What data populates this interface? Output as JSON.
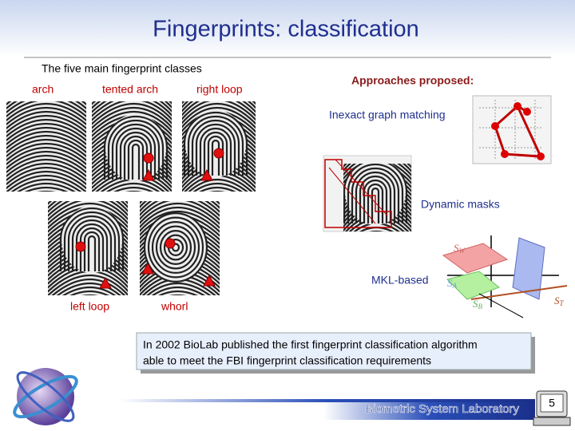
{
  "header": {
    "title": "Fingerprints: classification"
  },
  "classes": {
    "caption": "The five main fingerprint classes",
    "labels": [
      "arch",
      "tented arch",
      "right loop",
      "left loop",
      "whorl"
    ]
  },
  "approaches": {
    "heading": "Approaches proposed:",
    "items": [
      "Inexact graph matching",
      "Dynamic masks",
      "MKL-based"
    ],
    "mkl_labels": [
      {
        "base": "S",
        "sub": "W"
      },
      {
        "base": "S",
        "sub": "A"
      },
      {
        "base": "S",
        "sub": "B"
      },
      {
        "base": "S",
        "sub": "T"
      }
    ]
  },
  "callout": {
    "lines": [
      "In 2002 BioLab published the first fingerprint classification algorithm",
      "able to meet the FBI fingerprint classification requirements"
    ]
  },
  "footer": {
    "lab": "Biometric System Laboratory",
    "page": "5"
  }
}
